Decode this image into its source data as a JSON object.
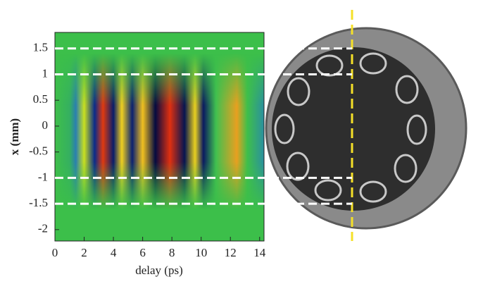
{
  "chart_data": {
    "type": "heatmap",
    "xlabel": "delay (ps)",
    "ylabel": "x (mm)",
    "xlim": [
      0,
      14.3
    ],
    "ylim": [
      -2.22,
      1.81
    ],
    "xticks": [
      0,
      2,
      4,
      6,
      8,
      10,
      12,
      14
    ],
    "yticks": [
      -2,
      -1.5,
      -1,
      -0.5,
      0,
      0.5,
      1,
      1.5
    ],
    "hlines": [
      1.5,
      1,
      -1,
      -1.5
    ]
  }
}
